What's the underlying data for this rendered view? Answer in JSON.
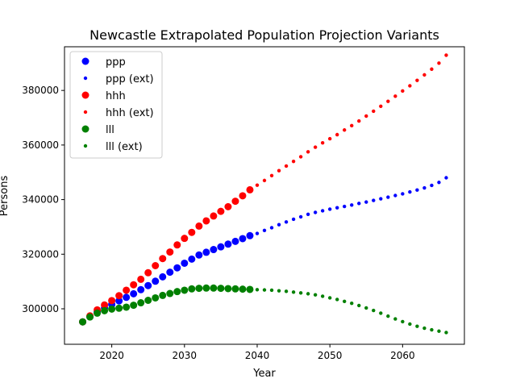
{
  "chart_data": {
    "type": "scatter",
    "title": "Newcastle Extrapolated Population Projection Variants",
    "xlabel": "Year",
    "ylabel": "Persons",
    "xlim": [
      2013.5,
      2068.5
    ],
    "ylim": [
      287000,
      396000
    ],
    "x_ticks": [
      2020,
      2030,
      2040,
      2050,
      2060
    ],
    "x_tick_labels": [
      "2020",
      "2030",
      "2040",
      "2050",
      "2060"
    ],
    "y_ticks": [
      300000,
      320000,
      340000,
      360000,
      380000
    ],
    "y_tick_labels": [
      "300000",
      "320000",
      "340000",
      "360000",
      "380000"
    ],
    "grid": false,
    "legend_position": "top-left",
    "series": [
      {
        "name": "ppp",
        "color": "#0000ff",
        "marker": "large",
        "x": [
          2016,
          2017,
          2018,
          2019,
          2020,
          2021,
          2022,
          2023,
          2024,
          2025,
          2026,
          2027,
          2028,
          2029,
          2030,
          2031,
          2032,
          2033,
          2034,
          2035,
          2036,
          2037,
          2038,
          2039
        ],
        "values": [
          295200,
          297100,
          298800,
          300300,
          301600,
          302900,
          304200,
          305500,
          307000,
          308500,
          310100,
          311700,
          313400,
          315000,
          316700,
          318200,
          319700,
          320700,
          321700,
          322700,
          323700,
          324700,
          325700,
          326800
        ]
      },
      {
        "name": "ppp (ext)",
        "color": "#0000ff",
        "marker": "small",
        "x": [
          2040,
          2041,
          2042,
          2043,
          2044,
          2045,
          2046,
          2047,
          2048,
          2049,
          2050,
          2051,
          2052,
          2053,
          2054,
          2055,
          2056,
          2057,
          2058,
          2059,
          2060,
          2061,
          2062,
          2063,
          2064,
          2065,
          2066
        ],
        "values": [
          327600,
          328700,
          329700,
          330800,
          331800,
          332800,
          333700,
          334600,
          335300,
          335900,
          336500,
          337000,
          337500,
          338000,
          338600,
          339100,
          339700,
          340300,
          340900,
          341500,
          342100,
          342800,
          343500,
          344300,
          345200,
          346300,
          348000
        ]
      },
      {
        "name": "hhh",
        "color": "#ff0000",
        "marker": "large",
        "x": [
          2016,
          2017,
          2018,
          2019,
          2020,
          2021,
          2022,
          2023,
          2024,
          2025,
          2026,
          2027,
          2028,
          2029,
          2030,
          2031,
          2032,
          2033,
          2034,
          2035,
          2036,
          2037,
          2038,
          2039
        ],
        "values": [
          295200,
          297400,
          299600,
          301400,
          303000,
          304800,
          306800,
          308800,
          310800,
          313200,
          315800,
          318400,
          320800,
          323400,
          325800,
          328000,
          330300,
          332200,
          334000,
          335700,
          337400,
          339400,
          341400,
          343600
        ]
      },
      {
        "name": "hhh (ext)",
        "color": "#ff0000",
        "marker": "small",
        "x": [
          2040,
          2041,
          2042,
          2043,
          2044,
          2045,
          2046,
          2047,
          2048,
          2049,
          2050,
          2051,
          2052,
          2053,
          2054,
          2055,
          2056,
          2057,
          2058,
          2059,
          2060,
          2061,
          2062,
          2063,
          2064,
          2065,
          2066
        ],
        "values": [
          345300,
          347000,
          348800,
          350600,
          352300,
          354000,
          355700,
          357500,
          359200,
          360800,
          362300,
          363800,
          365500,
          367100,
          368800,
          370600,
          372400,
          374200,
          376000,
          377900,
          379800,
          381700,
          383700,
          385700,
          387800,
          390000,
          392900
        ]
      },
      {
        "name": "lll",
        "color": "#008000",
        "marker": "large",
        "x": [
          2016,
          2017,
          2018,
          2019,
          2020,
          2021,
          2022,
          2023,
          2024,
          2025,
          2026,
          2027,
          2028,
          2029,
          2030,
          2031,
          2032,
          2033,
          2034,
          2035,
          2036,
          2037,
          2038,
          2039
        ],
        "values": [
          295200,
          297000,
          298400,
          299300,
          299900,
          300200,
          300600,
          301300,
          302200,
          303100,
          304000,
          304900,
          305600,
          306300,
          306800,
          307300,
          307500,
          307600,
          307600,
          307500,
          307400,
          307300,
          307200,
          307100
        ]
      },
      {
        "name": "lll (ext)",
        "color": "#008000",
        "marker": "small",
        "x": [
          2040,
          2041,
          2042,
          2043,
          2044,
          2045,
          2046,
          2047,
          2048,
          2049,
          2050,
          2051,
          2052,
          2053,
          2054,
          2055,
          2056,
          2057,
          2058,
          2059,
          2060,
          2061,
          2062,
          2063,
          2064,
          2065,
          2066
        ],
        "values": [
          307000,
          306900,
          306800,
          306600,
          306400,
          306100,
          305800,
          305500,
          305100,
          304600,
          304000,
          303400,
          302700,
          302000,
          301200,
          300300,
          299400,
          298400,
          297300,
          296300,
          295300,
          294400,
          293600,
          292900,
          292300,
          291800,
          291300
        ]
      }
    ]
  }
}
